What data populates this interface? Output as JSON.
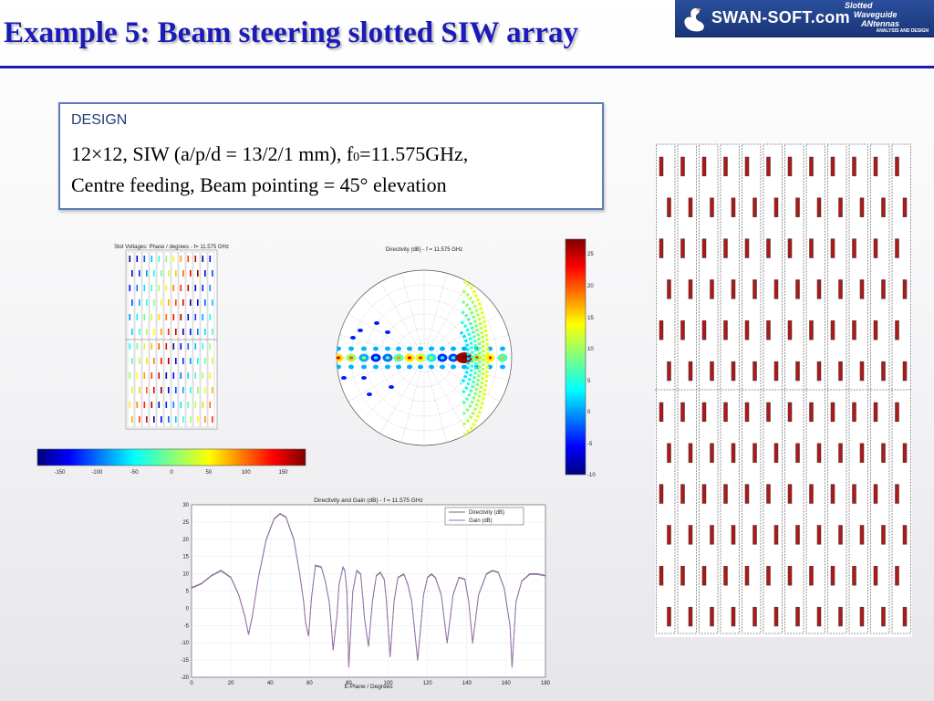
{
  "slide": {
    "title": "Example 5: Beam steering slotted SIW array"
  },
  "logo": {
    "name": "SWAN-SOFT.com",
    "tagline_line1": "Slotted",
    "tagline_line2": "Waveguide",
    "tagline_line3": "ANtennas",
    "tagline_sub": "ANALYSIS AND DESIGN"
  },
  "design": {
    "heading": "DESIGN",
    "line1_before_sub": "12×12, SIW (a/p/d = 13/2/1 mm), f",
    "line1_sub": "0",
    "line1_after_sub": "=11.575GHz,",
    "line2": "Centre feeding, Beam pointing = 45° elevation"
  },
  "slot_voltage_plot": {
    "title": "Slot Voltages: Phase / degrees - f= 11.575 GHz",
    "colorbar_ticks": [
      "-150",
      "-100",
      "-50",
      "0",
      "50",
      "100",
      "150"
    ]
  },
  "polar_plot": {
    "title": "Directivity (dB) - f = 11.575 GHz",
    "colorbar_ticks": [
      "25",
      "20",
      "15",
      "10",
      "5",
      "0",
      "-5",
      "-10"
    ]
  },
  "line_chart_legend": {
    "series1": "Directivity (dB)",
    "series2": "Gain (dB)"
  },
  "chart_data": {
    "type": "line",
    "title": "Directivity and Gain (dB) - f = 11.575 GHz",
    "xlabel": "E-Plane / Degrees",
    "ylabel": "",
    "xlim": [
      0,
      180
    ],
    "ylim": [
      -20,
      30
    ],
    "x_ticks": [
      "0",
      "20",
      "40",
      "60",
      "80",
      "100",
      "120",
      "140",
      "160",
      "180"
    ],
    "y_ticks": [
      "30",
      "25",
      "20",
      "15",
      "10",
      "5",
      "0",
      "-5",
      "-10",
      "-15",
      "-20"
    ],
    "grid": true,
    "legend": "top-right",
    "series": [
      {
        "name": "Directivity (dB)",
        "x": [
          0,
          5,
          10,
          15,
          20,
          24,
          27,
          29,
          31,
          34,
          38,
          42,
          45,
          48,
          52,
          55,
          57,
          58,
          59.5,
          61,
          63,
          66,
          68,
          70,
          71,
          72,
          74,
          75,
          77,
          78,
          79,
          80,
          82,
          84,
          86,
          87,
          88,
          90,
          92,
          94,
          96,
          98,
          99,
          101,
          103,
          105,
          108,
          110,
          112,
          115,
          118,
          120,
          122,
          124,
          127,
          130,
          133,
          136,
          139,
          141,
          143,
          146,
          150,
          153,
          156,
          159,
          162,
          163,
          165,
          168,
          172,
          176,
          180
        ],
        "y": [
          6,
          7.2,
          9.5,
          11,
          9,
          4,
          -2,
          -7.5,
          -2,
          9,
          20,
          26,
          27.5,
          26.5,
          20,
          10,
          2,
          -4,
          -8,
          3,
          12.5,
          12,
          8,
          2,
          -4,
          -12,
          -2,
          7,
          12,
          11,
          5,
          -17,
          5,
          11,
          10,
          4,
          -3,
          -11,
          2,
          9.5,
          10.5,
          8.5,
          3,
          -14,
          2,
          9,
          10,
          7,
          2,
          -15,
          4,
          9,
          10,
          9,
          4,
          -10,
          4,
          9,
          8.5,
          2,
          -10,
          4,
          10,
          11,
          10.5,
          6,
          -5,
          -17,
          2,
          8,
          10,
          10,
          9.5
        ]
      },
      {
        "name": "Gain (dB)",
        "x": [
          0,
          5,
          10,
          15,
          20,
          24,
          27,
          29,
          31,
          34,
          38,
          42,
          45,
          48,
          52,
          55,
          57,
          58,
          59.5,
          61,
          63,
          66,
          68,
          70,
          71,
          72,
          74,
          75,
          77,
          78,
          79,
          80,
          82,
          84,
          86,
          87,
          88,
          90,
          92,
          94,
          96,
          98,
          99,
          101,
          103,
          105,
          108,
          110,
          112,
          115,
          118,
          120,
          122,
          124,
          127,
          130,
          133,
          136,
          139,
          141,
          143,
          146,
          150,
          153,
          156,
          159,
          162,
          163,
          165,
          168,
          172,
          176,
          180
        ],
        "y": [
          5.8,
          7,
          9.3,
          10.8,
          8.8,
          3.8,
          -2.2,
          -7.7,
          -2.2,
          8.8,
          19.8,
          25.8,
          27.3,
          26.3,
          19.8,
          9.8,
          1.8,
          -4.2,
          -8.2,
          2.8,
          12.3,
          11.8,
          7.8,
          1.8,
          -4.2,
          -12.2,
          -2.2,
          6.8,
          11.8,
          10.8,
          4.8,
          -17.2,
          4.8,
          10.8,
          9.8,
          3.8,
          -3.2,
          -11.2,
          1.8,
          9.3,
          10.3,
          8.3,
          2.8,
          -14.2,
          1.8,
          8.8,
          9.8,
          6.8,
          1.8,
          -15.2,
          3.8,
          8.8,
          9.8,
          8.8,
          3.8,
          -10.2,
          3.8,
          8.8,
          8.3,
          1.8,
          -10.2,
          3.8,
          9.8,
          10.8,
          10.3,
          5.8,
          -5.2,
          -17.2,
          1.8,
          7.8,
          9.8,
          9.8,
          9.3
        ]
      }
    ]
  },
  "colors": {
    "title_blue": "#1b1bb8",
    "box_border": "#5a7fb8",
    "slot_red": "#b01818"
  }
}
